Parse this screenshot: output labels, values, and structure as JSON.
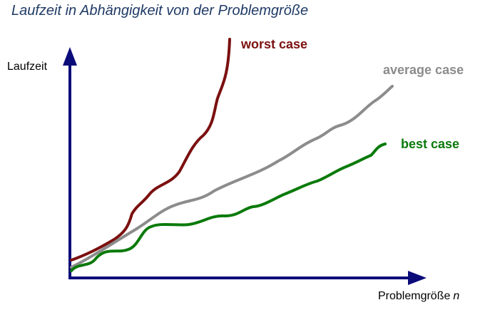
{
  "title": "Laufzeit in Abhängigkeit von der Problemgröße",
  "axes": {
    "y_label": "Laufzeit",
    "x_label": "Problemgröße",
    "x_label_var": "n"
  },
  "curves": [
    {
      "key": "worst",
      "label": "worst case",
      "color": "#7b1010"
    },
    {
      "key": "average",
      "label": "average case",
      "color": "#8c8c8c"
    },
    {
      "key": "best",
      "label": "best case",
      "color": "#0a7a0a"
    }
  ],
  "colors": {
    "axis": "#0b0b7a",
    "title": "#1f3a66"
  }
}
